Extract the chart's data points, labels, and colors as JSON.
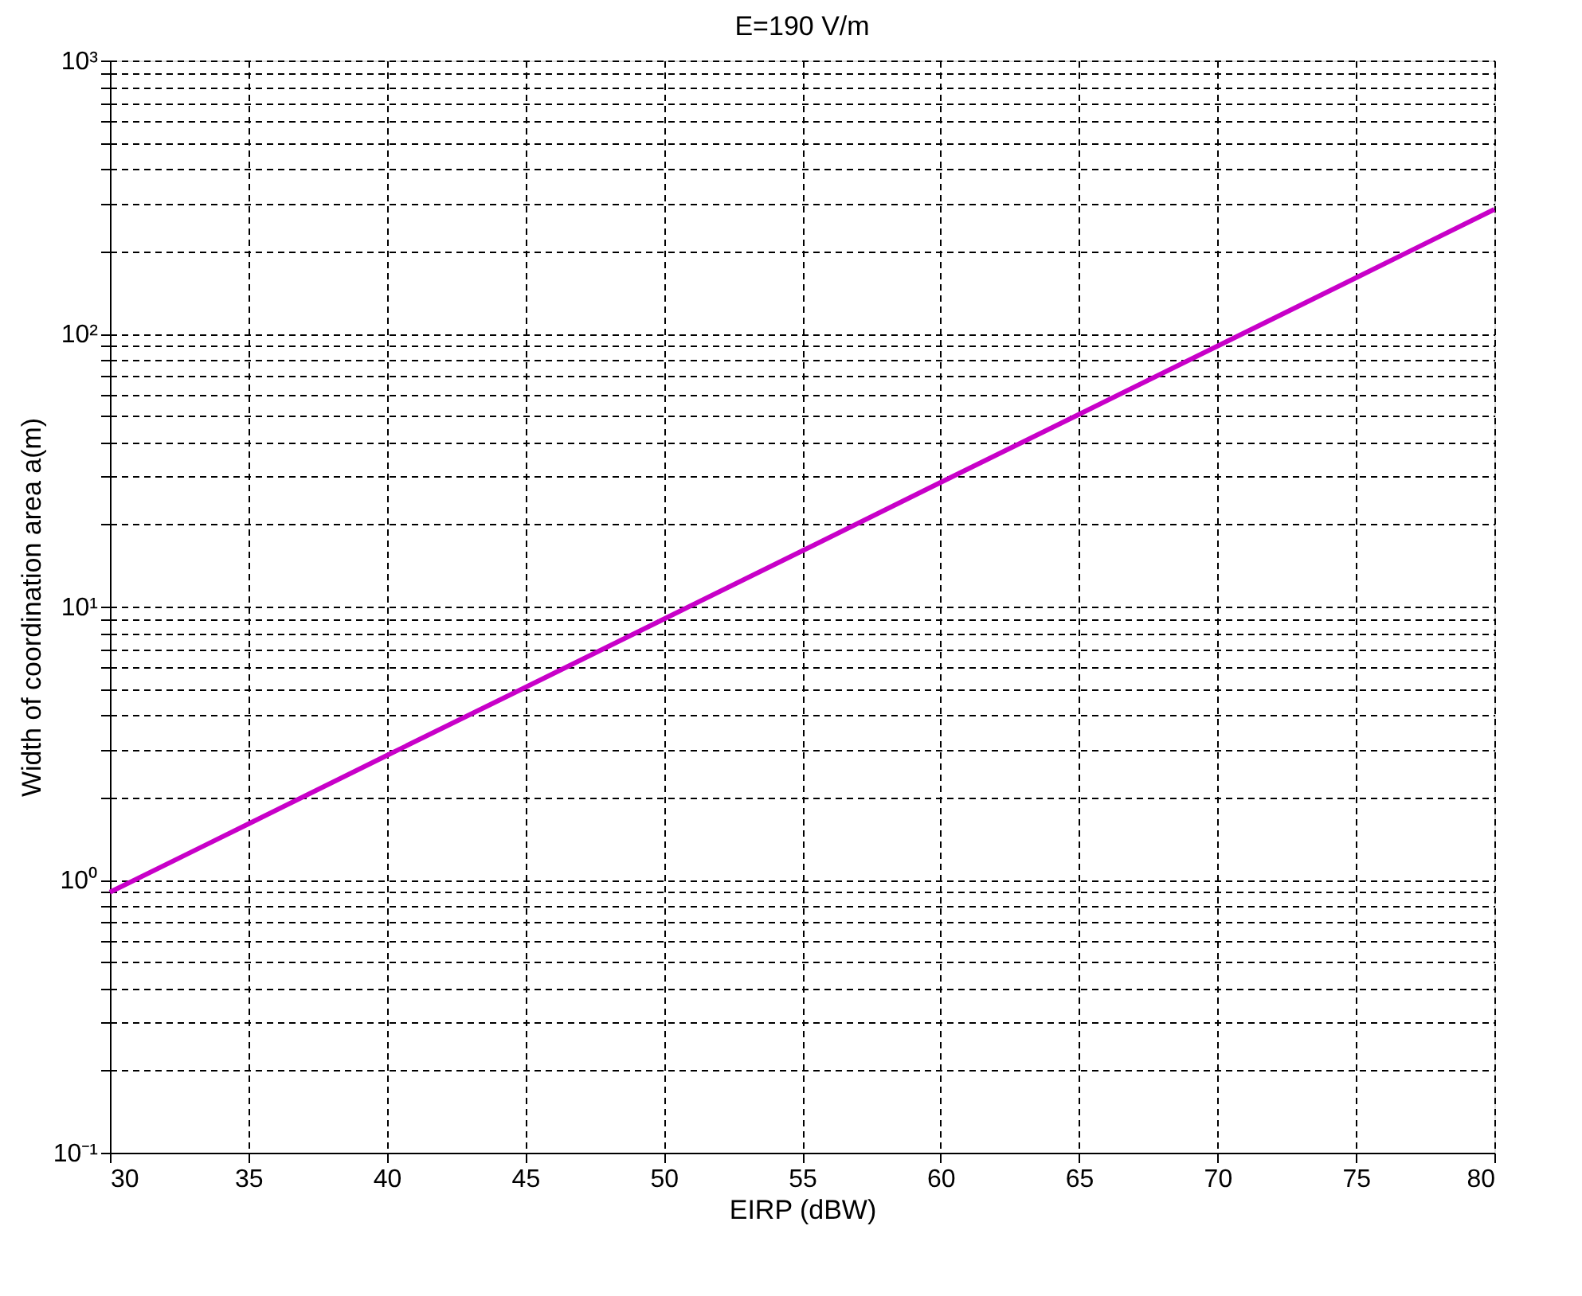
{
  "chart_data": {
    "type": "line",
    "title": "E=190 V/m",
    "xlabel": "EIRP (dBW)",
    "ylabel": "Width of coordination area a(m)",
    "x": [
      30,
      35,
      40,
      45,
      50,
      55,
      60,
      65,
      70,
      75,
      80
    ],
    "series": [
      {
        "color": "#c800c8",
        "values": [
          0.9,
          1.6,
          2.85,
          5.06,
          9,
          16,
          28.5,
          50.6,
          90,
          160,
          285
        ]
      }
    ],
    "log": "y",
    "grid": true,
    "xlim": [
      30,
      80
    ],
    "xticks": [
      30,
      35,
      40,
      45,
      50,
      55,
      60,
      65,
      70,
      75,
      80
    ],
    "ylim": [
      0.1,
      1000
    ],
    "yticks": [
      {
        "value": 0.1,
        "label": "10⁻¹"
      },
      {
        "value": 0.2,
        "label": null
      },
      {
        "value": 0.3,
        "label": null
      },
      {
        "value": 0.4,
        "label": null
      },
      {
        "value": 0.5,
        "label": null
      },
      {
        "value": 0.6,
        "label": null
      },
      {
        "value": 0.7,
        "label": null
      },
      {
        "value": 0.8,
        "label": null
      },
      {
        "value": 0.9,
        "label": null
      },
      {
        "value": 1,
        "label": "10⁰"
      },
      {
        "value": 2,
        "label": null
      },
      {
        "value": 3,
        "label": null
      },
      {
        "value": 4,
        "label": null
      },
      {
        "value": 5,
        "label": null
      },
      {
        "value": 6,
        "label": null
      },
      {
        "value": 7,
        "label": null
      },
      {
        "value": 8,
        "label": null
      },
      {
        "value": 9,
        "label": null
      },
      {
        "value": 10,
        "label": "10¹"
      },
      {
        "value": 20,
        "label": null
      },
      {
        "value": 30,
        "label": null
      },
      {
        "value": 40,
        "label": null
      },
      {
        "value": 50,
        "label": null
      },
      {
        "value": 60,
        "label": null
      },
      {
        "value": 70,
        "label": null
      },
      {
        "value": 80,
        "label": null
      },
      {
        "value": 90,
        "label": null
      },
      {
        "value": 100,
        "label": "10²"
      },
      {
        "value": 200,
        "label": null
      },
      {
        "value": 300,
        "label": null
      },
      {
        "value": 400,
        "label": null
      },
      {
        "value": 500,
        "label": null
      },
      {
        "value": 600,
        "label": null
      },
      {
        "value": 700,
        "label": null
      },
      {
        "value": 800,
        "label": null
      },
      {
        "value": 900,
        "label": null
      },
      {
        "value": 1000,
        "label": "10³"
      }
    ]
  }
}
